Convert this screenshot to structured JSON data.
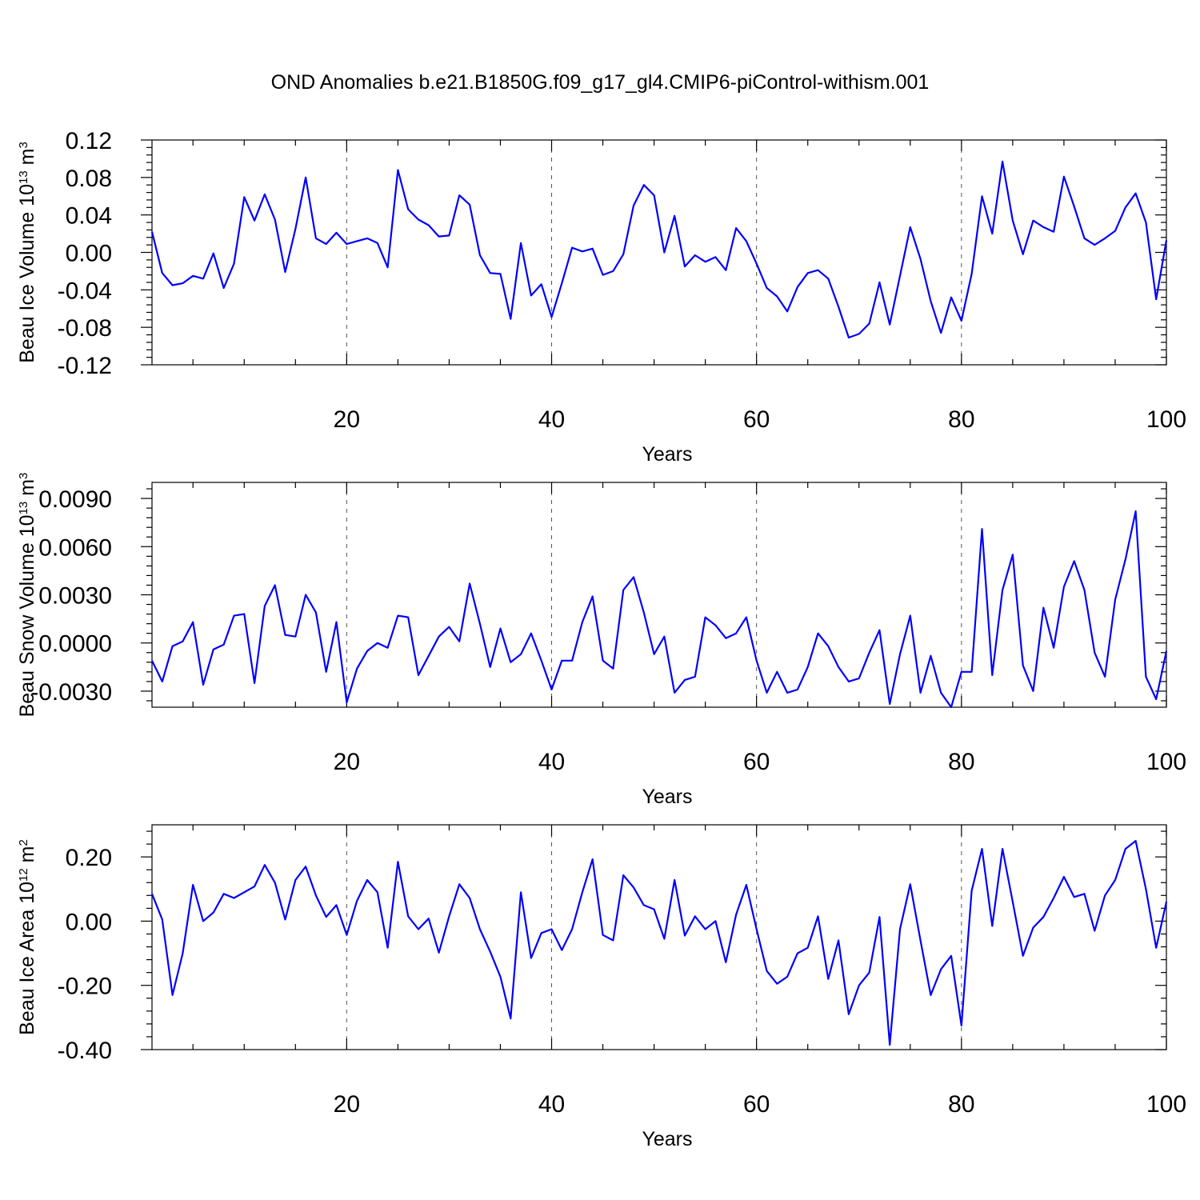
{
  "title": "OND Anomalies b.e21.B1850G.f09_g17_gl4.CMIP6-piControl-withism.001",
  "series_color": "#0000ff",
  "chart_data": [
    {
      "type": "line",
      "ylabel": "Beau Ice Volume 10",
      "ylabel_exponent": "13",
      "ylabel_unit": " m",
      "ylabel_unit_exponent": "3",
      "xlabel": "Years",
      "xlim": [
        1,
        100
      ],
      "ylim": [
        -0.12,
        0.12
      ],
      "xticks": [
        20,
        40,
        60,
        80,
        100
      ],
      "xtick_labels": [
        "20",
        "40",
        "60",
        "80",
        "100"
      ],
      "yticks": [
        -0.12,
        -0.08,
        -0.04,
        0.0,
        0.04,
        0.08,
        0.12
      ],
      "ytick_labels": [
        "-0.12",
        "-0.08",
        "-0.04",
        "0.00",
        "0.04",
        "0.08",
        "0.12"
      ],
      "grid": "vertical dashed at 20, 40, 60, 80",
      "x": [
        1,
        2,
        3,
        4,
        5,
        6,
        7,
        8,
        9,
        10,
        11,
        12,
        13,
        14,
        15,
        16,
        17,
        18,
        19,
        20,
        21,
        22,
        23,
        24,
        25,
        26,
        27,
        28,
        29,
        30,
        31,
        32,
        33,
        34,
        35,
        36,
        37,
        38,
        39,
        40,
        41,
        42,
        43,
        44,
        45,
        46,
        47,
        48,
        49,
        50,
        51,
        52,
        53,
        54,
        55,
        56,
        57,
        58,
        59,
        60,
        61,
        62,
        63,
        64,
        65,
        66,
        67,
        68,
        69,
        70,
        71,
        72,
        73,
        74,
        75,
        76,
        77,
        78,
        79,
        80,
        81,
        82,
        83,
        84,
        85,
        86,
        87,
        88,
        89,
        90,
        91,
        92,
        93,
        94,
        95,
        96,
        97,
        98,
        99,
        100
      ],
      "values": [
        0.022,
        -0.022,
        -0.035,
        -0.033,
        -0.025,
        -0.028,
        -0.001,
        -0.038,
        -0.012,
        0.059,
        0.034,
        0.062,
        0.035,
        -0.021,
        0.025,
        0.08,
        0.015,
        0.009,
        0.021,
        0.009,
        0.012,
        0.015,
        0.01,
        -0.016,
        0.088,
        0.046,
        0.035,
        0.029,
        0.017,
        0.018,
        0.061,
        0.051,
        -0.003,
        -0.022,
        -0.023,
        -0.071,
        0.01,
        -0.046,
        -0.034,
        -0.069,
        -0.033,
        0.005,
        0.001,
        0.004,
        -0.024,
        -0.02,
        -0.002,
        0.05,
        0.072,
        0.061,
        0.0,
        0.039,
        -0.015,
        -0.003,
        -0.01,
        -0.005,
        -0.019,
        0.026,
        0.012,
        -0.012,
        -0.038,
        -0.047,
        -0.063,
        -0.037,
        -0.022,
        -0.019,
        -0.028,
        -0.058,
        -0.091,
        -0.087,
        -0.076,
        -0.032,
        -0.077,
        -0.025,
        0.027,
        -0.007,
        -0.052,
        -0.086,
        -0.048,
        -0.073,
        -0.023,
        0.06,
        0.02,
        0.097,
        0.034,
        -0.002,
        0.034,
        0.027,
        0.022,
        0.081,
        0.049,
        0.015,
        0.008,
        0.015,
        0.023,
        0.048,
        0.063,
        0.032,
        -0.05,
        0.013
      ]
    },
    {
      "type": "line",
      "ylabel": "Beau Snow Volume 10",
      "ylabel_exponent": "13",
      "ylabel_unit": " m",
      "ylabel_unit_exponent": "3",
      "xlabel": "Years",
      "xlim": [
        1,
        100
      ],
      "ylim": [
        -0.004,
        0.01
      ],
      "xticks": [
        20,
        40,
        60,
        80,
        100
      ],
      "xtick_labels": [
        "20",
        "40",
        "60",
        "80",
        "100"
      ],
      "yticks": [
        -0.003,
        0.0,
        0.003,
        0.006,
        0.009
      ],
      "ytick_labels": [
        "-0.0030",
        "0.0000",
        "0.0030",
        "0.0060",
        "0.0090"
      ],
      "grid": "vertical dashed at 20, 40, 60, 80",
      "x": [
        1,
        2,
        3,
        4,
        5,
        6,
        7,
        8,
        9,
        10,
        11,
        12,
        13,
        14,
        15,
        16,
        17,
        18,
        19,
        20,
        21,
        22,
        23,
        24,
        25,
        26,
        27,
        28,
        29,
        30,
        31,
        32,
        33,
        34,
        35,
        36,
        37,
        38,
        39,
        40,
        41,
        42,
        43,
        44,
        45,
        46,
        47,
        48,
        49,
        50,
        51,
        52,
        53,
        54,
        55,
        56,
        57,
        58,
        59,
        60,
        61,
        62,
        63,
        64,
        65,
        66,
        67,
        68,
        69,
        70,
        71,
        72,
        73,
        74,
        75,
        76,
        77,
        78,
        79,
        80,
        81,
        82,
        83,
        84,
        85,
        86,
        87,
        88,
        89,
        90,
        91,
        92,
        93,
        94,
        95,
        96,
        97,
        98,
        99,
        100
      ],
      "values": [
        -0.0011,
        -0.0024,
        -0.0002,
        0.0001,
        0.0013,
        -0.0026,
        -0.0004,
        -0.0001,
        0.0017,
        0.0018,
        -0.0025,
        0.0023,
        0.0036,
        0.0005,
        0.0004,
        0.003,
        0.0019,
        -0.0018,
        0.0013,
        -0.0037,
        -0.0016,
        -0.0005,
        0.0,
        -0.0003,
        0.0017,
        0.0016,
        -0.002,
        -0.0008,
        0.0004,
        0.001,
        0.0001,
        0.0037,
        0.0012,
        -0.0015,
        0.0009,
        -0.0012,
        -0.0007,
        0.0006,
        -0.0011,
        -0.0029,
        -0.0011,
        -0.0011,
        0.0013,
        0.0029,
        -0.0011,
        -0.0016,
        0.0033,
        0.0041,
        0.0019,
        -0.0007,
        0.0004,
        -0.0031,
        -0.0023,
        -0.0021,
        0.0016,
        0.0011,
        0.0003,
        0.0006,
        0.0016,
        -0.0011,
        -0.0031,
        -0.0018,
        -0.0031,
        -0.0029,
        -0.0015,
        0.0006,
        -0.0002,
        -0.0015,
        -0.0024,
        -0.0022,
        -0.0006,
        0.0008,
        -0.0038,
        -0.0007,
        0.0017,
        -0.0031,
        -0.0008,
        -0.0031,
        -0.004,
        -0.0018,
        -0.0018,
        0.0071,
        -0.002,
        0.0033,
        0.0055,
        -0.0014,
        -0.003,
        0.0022,
        -0.0003,
        0.0035,
        0.0051,
        0.0033,
        -0.0006,
        -0.0021,
        0.0027,
        0.0052,
        0.0082,
        -0.0021,
        -0.0035,
        -0.0005
      ]
    },
    {
      "type": "line",
      "ylabel": "Beau Ice Area 10",
      "ylabel_exponent": "12",
      "ylabel_unit": " m",
      "ylabel_unit_exponent": "2",
      "xlabel": "Years",
      "xlim": [
        1,
        100
      ],
      "ylim": [
        -0.4,
        0.3
      ],
      "xticks": [
        20,
        40,
        60,
        80,
        100
      ],
      "xtick_labels": [
        "20",
        "40",
        "60",
        "80",
        "100"
      ],
      "yticks": [
        -0.4,
        -0.2,
        0.0,
        0.2
      ],
      "ytick_labels": [
        "-0.40",
        "-0.20",
        "0.00",
        "0.20"
      ],
      "grid": "vertical dashed at 20, 40, 60, 80",
      "x": [
        1,
        2,
        3,
        4,
        5,
        6,
        7,
        8,
        9,
        10,
        11,
        12,
        13,
        14,
        15,
        16,
        17,
        18,
        19,
        20,
        21,
        22,
        23,
        24,
        25,
        26,
        27,
        28,
        29,
        30,
        31,
        32,
        33,
        34,
        35,
        36,
        37,
        38,
        39,
        40,
        41,
        42,
        43,
        44,
        45,
        46,
        47,
        48,
        49,
        50,
        51,
        52,
        53,
        54,
        55,
        56,
        57,
        58,
        59,
        60,
        61,
        62,
        63,
        64,
        65,
        66,
        67,
        68,
        69,
        70,
        71,
        72,
        73,
        74,
        75,
        76,
        77,
        78,
        79,
        80,
        81,
        82,
        83,
        84,
        85,
        86,
        87,
        88,
        89,
        90,
        91,
        92,
        93,
        94,
        95,
        96,
        97,
        98,
        99,
        100
      ],
      "values": [
        0.085,
        0.005,
        -0.23,
        -0.1,
        0.113,
        0.0,
        0.027,
        0.085,
        0.072,
        0.09,
        0.108,
        0.175,
        0.12,
        0.005,
        0.128,
        0.17,
        0.08,
        0.013,
        0.05,
        -0.043,
        0.063,
        0.128,
        0.09,
        -0.083,
        0.185,
        0.015,
        -0.025,
        0.008,
        -0.098,
        0.015,
        0.115,
        0.072,
        -0.025,
        -0.095,
        -0.173,
        -0.303,
        0.09,
        -0.115,
        -0.037,
        -0.025,
        -0.09,
        -0.025,
        0.09,
        0.193,
        -0.043,
        -0.06,
        0.143,
        0.105,
        0.05,
        0.037,
        -0.055,
        0.128,
        -0.045,
        0.015,
        -0.025,
        0.0,
        -0.128,
        0.02,
        0.113,
        -0.025,
        -0.155,
        -0.195,
        -0.173,
        -0.1,
        -0.083,
        0.015,
        -0.18,
        -0.06,
        -0.29,
        -0.2,
        -0.16,
        0.013,
        -0.385,
        -0.025,
        0.115,
        -0.06,
        -0.23,
        -0.15,
        -0.108,
        -0.325,
        0.095,
        0.225,
        -0.015,
        0.225,
        0.06,
        -0.108,
        -0.02,
        0.013,
        0.072,
        0.138,
        0.075,
        0.085,
        -0.03,
        0.08,
        0.128,
        0.225,
        0.25,
        0.1,
        -0.083,
        0.06
      ]
    }
  ]
}
